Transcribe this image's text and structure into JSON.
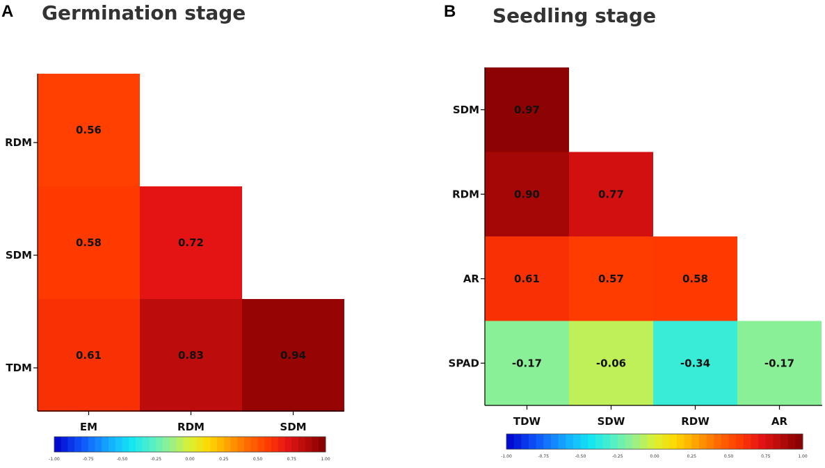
{
  "chart_data": [
    {
      "type": "heatmap",
      "panel": "A",
      "title": "Germination stage",
      "x_labels": [
        "EM",
        "RDM",
        "SDM"
      ],
      "y_labels": [
        "RDM",
        "SDM",
        "TDM"
      ],
      "cells": [
        {
          "x": "EM",
          "y": "RDM",
          "value": 0.56,
          "label": "0.56"
        },
        {
          "x": "EM",
          "y": "SDM",
          "value": 0.58,
          "label": "0.58"
        },
        {
          "x": "RDM",
          "y": "SDM",
          "value": 0.72,
          "label": "0.72"
        },
        {
          "x": "EM",
          "y": "TDM",
          "value": 0.61,
          "label": "0.61"
        },
        {
          "x": "RDM",
          "y": "TDM",
          "value": 0.83,
          "label": "0.83"
        },
        {
          "x": "SDM",
          "y": "TDM",
          "value": 0.94,
          "label": "0.94"
        }
      ],
      "colorbar": {
        "min": -1.0,
        "max": 1.0,
        "tick_labels": [
          "-1.00",
          "-0.75",
          "-0.50",
          "-0.25",
          "0.00",
          "0.25",
          "0.50",
          "0.75",
          "1.00"
        ]
      }
    },
    {
      "type": "heatmap",
      "panel": "B",
      "title": "Seedling stage",
      "x_labels": [
        "TDW",
        "SDW",
        "RDW",
        "AR"
      ],
      "y_labels": [
        "SDM",
        "RDM",
        "AR",
        "SPAD"
      ],
      "cells": [
        {
          "x": "TDW",
          "y": "SDM",
          "value": 0.97,
          "label": "0.97"
        },
        {
          "x": "TDW",
          "y": "RDM",
          "value": 0.9,
          "label": "0.90"
        },
        {
          "x": "SDW",
          "y": "RDM",
          "value": 0.77,
          "label": "0.77"
        },
        {
          "x": "TDW",
          "y": "AR",
          "value": 0.61,
          "label": "0.61"
        },
        {
          "x": "SDW",
          "y": "AR",
          "value": 0.57,
          "label": "0.57"
        },
        {
          "x": "RDW",
          "y": "AR",
          "value": 0.58,
          "label": "0.58"
        },
        {
          "x": "TDW",
          "y": "SPAD",
          "value": -0.17,
          "label": "-0.17"
        },
        {
          "x": "SDW",
          "y": "SPAD",
          "value": -0.06,
          "label": "-0.06"
        },
        {
          "x": "RDW",
          "y": "SPAD",
          "value": -0.34,
          "label": "-0.34"
        },
        {
          "x": "AR",
          "y": "SPAD",
          "value": -0.17,
          "label": "-0.17"
        }
      ],
      "colorbar": {
        "min": -1.0,
        "max": 1.0,
        "tick_labels": [
          "-1.00",
          "-0.75",
          "-0.50",
          "-0.25",
          "0.00",
          "0.25",
          "0.50",
          "0.75",
          "1.00"
        ]
      }
    }
  ],
  "colors": {
    "ramp": [
      "#0000c8",
      "#0a3cf0",
      "#1478ff",
      "#14b4ff",
      "#14e6f0",
      "#50f0c8",
      "#96f08c",
      "#dcf032",
      "#ffd700",
      "#ffa000",
      "#ff6a00",
      "#ff3c00",
      "#e61414",
      "#b40a0a",
      "#820000"
    ]
  }
}
